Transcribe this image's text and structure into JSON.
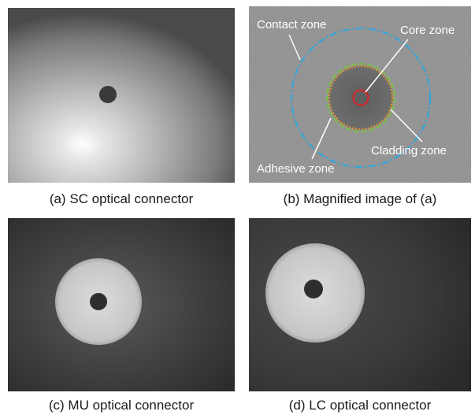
{
  "panels": [
    {
      "caption": "(a) SC optical connector"
    },
    {
      "caption": "(b) Magnified image of (a)",
      "annotations": [
        "Contact zone",
        "Core zone",
        "Cladding zone",
        "Adhesive zone"
      ]
    },
    {
      "caption": "(c) MU optical connector"
    },
    {
      "caption": "(d) LC optical connector"
    }
  ]
}
